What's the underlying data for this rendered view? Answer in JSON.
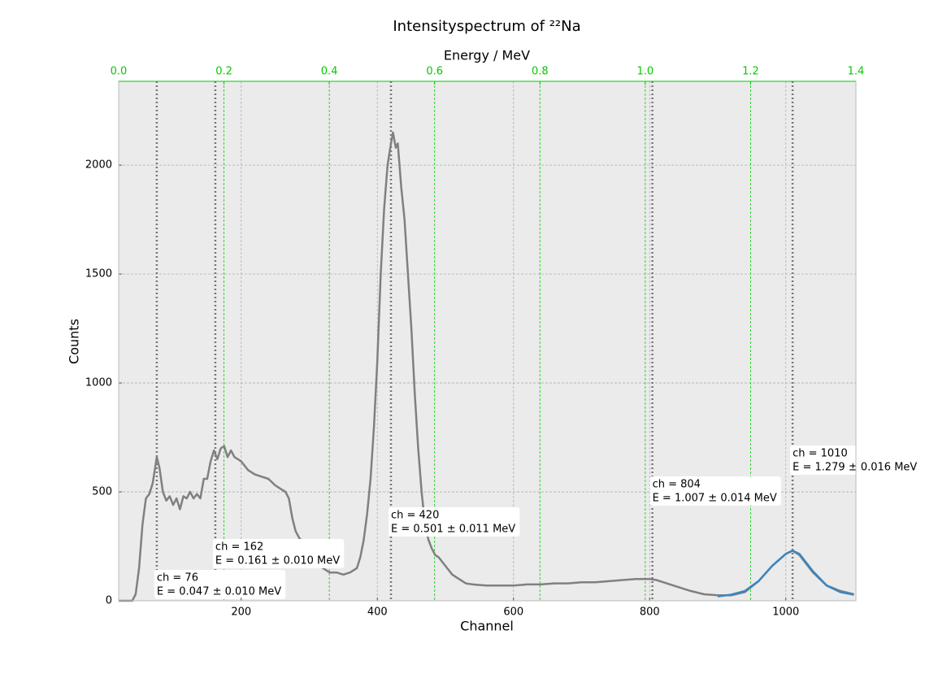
{
  "chart_data": {
    "type": "line",
    "title": "Intensityspectrum of ²²Na",
    "x_label": "Channel",
    "y_label": "Counts",
    "x2_label": "Energy / MeV",
    "xlim": [
      20,
      1103
    ],
    "xticks": [
      200,
      400,
      600,
      800,
      1000
    ],
    "ylim": [
      0,
      2385
    ],
    "yticks": [
      0,
      500,
      1000,
      1500,
      2000
    ],
    "x2lim": [
      0,
      1.4
    ],
    "x2ticks": [
      {
        "value": 0,
        "label": "0.0"
      },
      0.2,
      0.4,
      0.6,
      0.8,
      {
        "value": 1,
        "label": "1.0"
      },
      1.2,
      1.4
    ],
    "x2_color": "#00cc00",
    "grid": true,
    "series": [
      {
        "color": "#808080",
        "x": [
          20,
          30,
          40,
          45,
          50,
          55,
          60,
          65,
          70,
          74,
          76,
          80,
          85,
          90,
          95,
          100,
          105,
          110,
          115,
          120,
          125,
          130,
          135,
          140,
          145,
          150,
          155,
          160,
          165,
          170,
          175,
          180,
          185,
          190,
          195,
          200,
          210,
          220,
          230,
          240,
          250,
          260,
          265,
          270,
          275,
          280,
          285,
          290,
          300,
          310,
          320,
          330,
          340,
          350,
          360,
          370,
          375,
          380,
          385,
          390,
          395,
          400,
          405,
          410,
          415,
          420,
          423,
          427,
          430,
          435,
          440,
          445,
          450,
          455,
          460,
          465,
          470,
          475,
          480,
          485,
          490,
          500,
          510,
          520,
          530,
          540,
          560,
          580,
          600,
          620,
          640,
          660,
          680,
          700,
          720,
          740,
          760,
          780,
          800,
          810,
          820,
          840,
          860,
          880,
          900,
          920,
          940,
          960,
          980,
          1000,
          1010,
          1020,
          1040,
          1060,
          1080,
          1100
        ],
        "values": [
          0,
          0,
          0,
          30,
          150,
          350,
          470,
          490,
          540,
          620,
          660,
          610,
          500,
          460,
          480,
          440,
          470,
          420,
          480,
          470,
          500,
          470,
          490,
          470,
          560,
          560,
          640,
          690,
          650,
          700,
          710,
          660,
          690,
          660,
          650,
          640,
          600,
          580,
          570,
          560,
          530,
          510,
          500,
          470,
          380,
          320,
          290,
          270,
          220,
          180,
          150,
          130,
          130,
          120,
          130,
          150,
          200,
          280,
          400,
          560,
          800,
          1100,
          1500,
          1800,
          2000,
          2100,
          2150,
          2080,
          2100,
          1900,
          1750,
          1500,
          1250,
          950,
          700,
          500,
          350,
          280,
          240,
          210,
          200,
          160,
          120,
          100,
          80,
          75,
          70,
          70,
          70,
          75,
          75,
          80,
          80,
          85,
          85,
          90,
          95,
          100,
          100,
          95,
          85,
          65,
          45,
          30,
          25,
          25,
          40,
          90,
          160,
          215,
          230,
          210,
          130,
          70,
          45,
          30
        ]
      },
      {
        "color": "#3a85c0",
        "x": [
          900,
          920,
          940,
          960,
          980,
          1000,
          1010,
          1020,
          1040,
          1060,
          1080,
          1100
        ],
        "values": [
          20,
          28,
          45,
          90,
          160,
          215,
          230,
          215,
          135,
          70,
          40,
          28
        ]
      }
    ],
    "annotations": [
      {
        "channel": 76,
        "label": "ch = 76",
        "energy_label": "E  = 0.047 ± 0.010 MeV"
      },
      {
        "channel": 162,
        "label": "ch = 162",
        "energy_label": "E  = 0.161 ± 0.010 MeV"
      },
      {
        "channel": 420,
        "label": "ch = 420",
        "energy_label": "E  = 0.501 ± 0.011 MeV"
      },
      {
        "channel": 804,
        "label": "ch = 804",
        "energy_label": "E  = 1.007 ± 0.014 MeV"
      },
      {
        "channel": 1010,
        "label": "ch = 1010",
        "energy_label": "E  = 1.279 ± 0.016 MeV"
      }
    ]
  }
}
